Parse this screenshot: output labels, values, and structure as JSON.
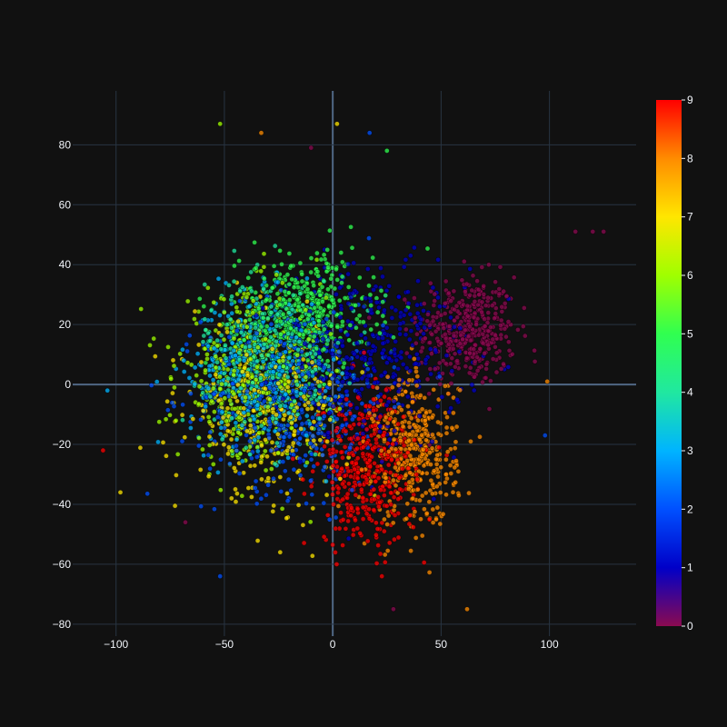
{
  "chart_data": {
    "type": "scatter",
    "title": "",
    "xlabel": "",
    "ylabel": "",
    "xlim": [
      -120,
      140
    ],
    "ylim": [
      -84,
      98
    ],
    "x_ticks": [
      -100,
      -50,
      0,
      50,
      100
    ],
    "y_ticks": [
      -80,
      -60,
      -40,
      -20,
      0,
      20,
      40,
      60,
      80
    ],
    "x_tick_labels": [
      "−100",
      "−50",
      "0",
      "50",
      "100"
    ],
    "y_tick_labels": [
      "−80",
      "−60",
      "−40",
      "−20",
      "0",
      "20",
      "40",
      "60",
      "80"
    ],
    "grid": true,
    "marker": {
      "opacity": 0.75,
      "outline": "#000000"
    },
    "colorbar": {
      "range": [
        0,
        9
      ],
      "ticks": [
        0,
        1,
        2,
        3,
        4,
        5,
        6,
        7,
        8,
        9
      ],
      "tick_labels": [
        "0",
        "1",
        "2",
        "3",
        "4",
        "5",
        "6",
        "7",
        "8",
        "9"
      ],
      "colorscale": [
        "#8b0a50",
        "#0000c8",
        "#0050ff",
        "#00b4ff",
        "#20e8a0",
        "#30ff50",
        "#a0ff00",
        "#ffe600",
        "#ff8c00",
        "#ff0000"
      ]
    },
    "clusters": [
      {
        "label": 0,
        "center": [
          62,
          18
        ],
        "spread": [
          16,
          13
        ],
        "count": 420
      },
      {
        "label": 1,
        "center": [
          18,
          8
        ],
        "spread": [
          30,
          22
        ],
        "count": 420
      },
      {
        "label": 2,
        "center": [
          -18,
          -4
        ],
        "spread": [
          30,
          22
        ],
        "count": 480
      },
      {
        "label": 3,
        "center": [
          -35,
          4
        ],
        "spread": [
          22,
          18
        ],
        "count": 420
      },
      {
        "label": 4,
        "center": [
          -28,
          10
        ],
        "spread": [
          22,
          18
        ],
        "count": 440
      },
      {
        "label": 5,
        "center": [
          -12,
          24
        ],
        "spread": [
          22,
          14
        ],
        "count": 420
      },
      {
        "label": 6,
        "center": [
          -38,
          2
        ],
        "spread": [
          24,
          20
        ],
        "count": 420
      },
      {
        "label": 7,
        "center": [
          -28,
          -8
        ],
        "spread": [
          26,
          20
        ],
        "count": 380
      },
      {
        "label": 8,
        "center": [
          38,
          -22
        ],
        "spread": [
          14,
          18
        ],
        "count": 420
      },
      {
        "label": 9,
        "center": [
          16,
          -28
        ],
        "spread": [
          16,
          18
        ],
        "count": 440
      }
    ],
    "outliers": [
      {
        "x": -52,
        "y": 87,
        "c": 6
      },
      {
        "x": -33,
        "y": 84,
        "c": 8
      },
      {
        "x": 2,
        "y": 87,
        "c": 7
      },
      {
        "x": 17,
        "y": 84,
        "c": 2
      },
      {
        "x": 25,
        "y": 78,
        "c": 5
      },
      {
        "x": -10,
        "y": 79,
        "c": 0
      },
      {
        "x": 120,
        "y": 51,
        "c": 0
      },
      {
        "x": 112,
        "y": 51,
        "c": 0
      },
      {
        "x": 125,
        "y": 51,
        "c": 0
      },
      {
        "x": -104,
        "y": -2,
        "c": 3
      },
      {
        "x": -106,
        "y": -22,
        "c": 9
      },
      {
        "x": -98,
        "y": -36,
        "c": 7
      },
      {
        "x": -52,
        "y": -64,
        "c": 2
      },
      {
        "x": 62,
        "y": -75,
        "c": 8
      },
      {
        "x": 28,
        "y": -75,
        "c": 0
      },
      {
        "x": 99,
        "y": 1,
        "c": 8
      },
      {
        "x": 98,
        "y": -17,
        "c": 2
      },
      {
        "x": -68,
        "y": -46,
        "c": 0
      }
    ]
  }
}
